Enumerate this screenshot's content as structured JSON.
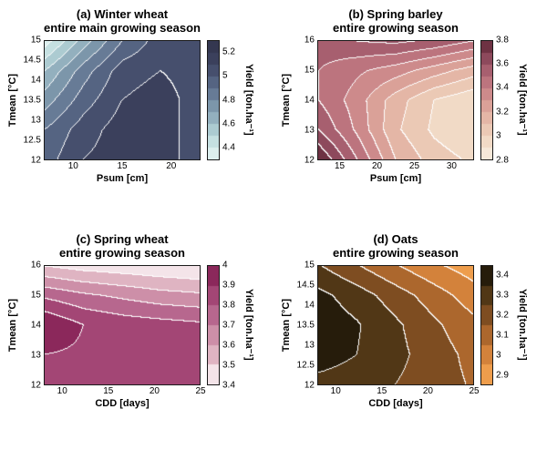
{
  "figure": {
    "background": "#ffffff",
    "contour_line_color": "#ffffff"
  },
  "chart_data": [
    {
      "id": "a",
      "type": "contour",
      "title_line1": "(a) Winter wheat",
      "title_line2": "entire main growing season",
      "xlabel": "Psum [cm]",
      "ylabel": "Tmean [°C]",
      "colorbar_label": "Yield [ton.ha⁻¹]",
      "xlim": [
        7,
        23
      ],
      "ylim": [
        12,
        15
      ],
      "xticks": [
        10,
        15,
        20
      ],
      "yticks": [
        12,
        12.5,
        13,
        13.5,
        14,
        14.5,
        15
      ],
      "clim": [
        4.3,
        5.3
      ],
      "colorbar_ticks": [
        4.4,
        4.6,
        4.8,
        5,
        5.2
      ],
      "level_step": 0.1,
      "colormap": [
        "#e8f6f4",
        "#b9d8da",
        "#86a3b4",
        "#5c6e8c",
        "#3f4462",
        "#30324a"
      ],
      "grid": {
        "x": [
          7,
          11,
          15,
          19,
          23
        ],
        "y": [
          12,
          12.75,
          13.5,
          14.25,
          15
        ],
        "values_row_order": "y-ascending",
        "values": [
          [
            4.95,
            5.1,
            5.15,
            5.15,
            5.05
          ],
          [
            4.9,
            5.05,
            5.15,
            5.15,
            5.05
          ],
          [
            4.75,
            4.95,
            5.1,
            5.15,
            5.05
          ],
          [
            4.6,
            4.85,
            5.05,
            5.1,
            5.05
          ],
          [
            4.35,
            4.65,
            4.9,
            5.05,
            5.0
          ]
        ]
      }
    },
    {
      "id": "b",
      "type": "contour",
      "title_line1": "(b) Spring barley",
      "title_line2": "entire growing season",
      "xlabel": "Psum [cm]",
      "ylabel": "Tmean [°C]",
      "colorbar_label": "Yield [ton.ha⁻¹]",
      "xlim": [
        12,
        33
      ],
      "ylim": [
        12,
        16
      ],
      "xticks": [
        15,
        20,
        25,
        30
      ],
      "yticks": [
        12,
        13,
        14,
        15,
        16
      ],
      "clim": [
        2.8,
        3.8
      ],
      "colorbar_ticks": [
        2.8,
        3,
        3.2,
        3.4,
        3.6,
        3.8
      ],
      "level_step": 0.1,
      "colormap": [
        "#f8efe2",
        "#eed3bc",
        "#e0ac9e",
        "#c67f85",
        "#9c5468",
        "#5f2737"
      ],
      "grid": {
        "x": [
          12,
          17.25,
          22.5,
          27.75,
          33
        ],
        "y": [
          12,
          13,
          14,
          15,
          16
        ],
        "values_row_order": "y-ascending",
        "values": [
          [
            3.8,
            3.5,
            3.2,
            3.05,
            2.98
          ],
          [
            3.6,
            3.38,
            3.12,
            2.98,
            2.9
          ],
          [
            3.5,
            3.35,
            3.15,
            3.0,
            2.92
          ],
          [
            3.5,
            3.42,
            3.35,
            3.25,
            3.15
          ],
          [
            3.55,
            3.6,
            3.62,
            3.58,
            3.5
          ]
        ]
      }
    },
    {
      "id": "c",
      "type": "contour",
      "title_line1": "(c) Spring wheat",
      "title_line2": "entire growing season",
      "xlabel": "CDD [days]",
      "ylabel": "Tmean [°C]",
      "colorbar_label": "Yield [ton.ha⁻¹]",
      "xlim": [
        8,
        25
      ],
      "ylim": [
        12,
        16
      ],
      "xticks": [
        10,
        15,
        20,
        25
      ],
      "yticks": [
        12,
        13,
        14,
        15,
        16
      ],
      "clim": [
        3.4,
        4
      ],
      "colorbar_ticks": [
        3.4,
        3.5,
        3.6,
        3.7,
        3.8,
        3.9,
        4
      ],
      "level_step": 0.1,
      "colormap": [
        "#ffffff",
        "#e4bfca",
        "#cf93ab",
        "#b5638b",
        "#9d3c6e",
        "#7e1a4e"
      ],
      "grid": {
        "x": [
          8,
          12.25,
          16.5,
          20.75,
          25
        ],
        "y": [
          12,
          13,
          14,
          15,
          16
        ],
        "values_row_order": "y-ascending",
        "values": [
          [
            3.86,
            3.86,
            3.85,
            3.84,
            3.82
          ],
          [
            3.9,
            3.88,
            3.86,
            3.84,
            3.82
          ],
          [
            4.0,
            3.9,
            3.86,
            3.84,
            3.82
          ],
          [
            3.78,
            3.72,
            3.68,
            3.64,
            3.62
          ],
          [
            3.5,
            3.46,
            3.44,
            3.42,
            3.4
          ]
        ]
      }
    },
    {
      "id": "d",
      "type": "contour",
      "title_line1": "(d) Oats",
      "title_line2": "entire growing season",
      "xlabel": "CDD [days]",
      "ylabel": "Tmean [°C]",
      "colorbar_label": "Yield [ton.ha⁻¹]",
      "xlim": [
        8,
        25
      ],
      "ylim": [
        12,
        15
      ],
      "xticks": [
        10,
        15,
        20,
        25
      ],
      "yticks": [
        12,
        12.5,
        13,
        13.5,
        14,
        14.5,
        15
      ],
      "clim": [
        2.85,
        3.45
      ],
      "colorbar_ticks": [
        2.9,
        3,
        3.1,
        3.2,
        3.3,
        3.4
      ],
      "level_step": 0.1,
      "colormap": [
        "#f9ab55",
        "#de8a3f",
        "#b06a2e",
        "#7a4a20",
        "#433012",
        "#120d06"
      ],
      "grid": {
        "x": [
          8,
          12.25,
          16.5,
          20.75,
          25
        ],
        "y": [
          12,
          12.75,
          13.5,
          14.25,
          15
        ],
        "values_row_order": "y-ascending",
        "values": [
          [
            3.32,
            3.3,
            3.25,
            3.2,
            3.14
          ],
          [
            3.4,
            3.35,
            3.28,
            3.2,
            3.12
          ],
          [
            3.42,
            3.36,
            3.27,
            3.17,
            3.08
          ],
          [
            3.38,
            3.3,
            3.2,
            3.1,
            3.0
          ],
          [
            3.26,
            3.16,
            3.06,
            2.97,
            2.9
          ]
        ]
      }
    }
  ]
}
